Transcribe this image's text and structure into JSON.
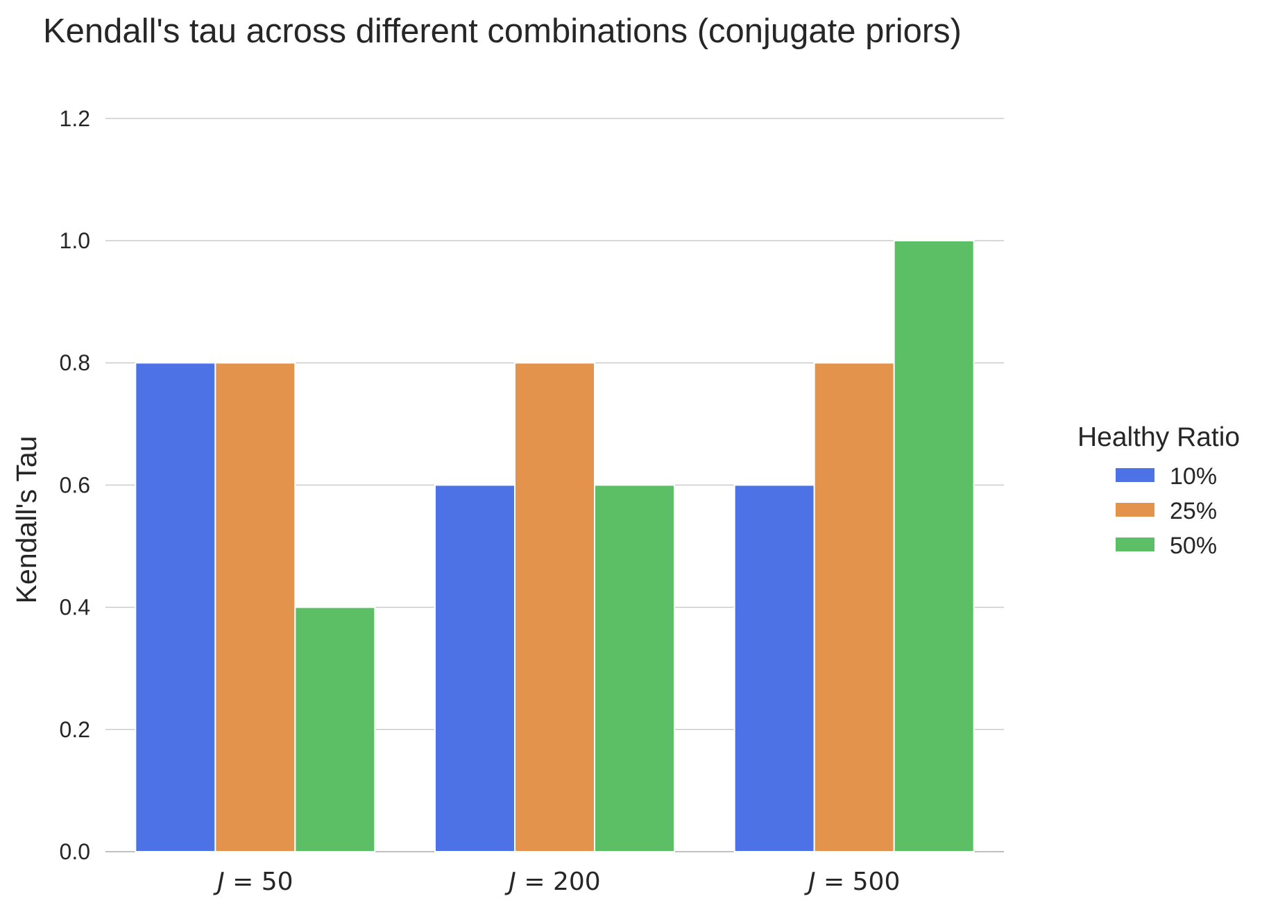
{
  "chart_data": {
    "type": "bar",
    "title": "Kendall's tau across different combinations (conjugate priors)",
    "xlabel": "",
    "ylabel": "Kendall's Tau",
    "categories": [
      "J = 50",
      "J = 200",
      "J = 500"
    ],
    "category_prefix": "J",
    "category_numbers": [
      "50",
      "200",
      "500"
    ],
    "ylim": [
      0,
      1.25
    ],
    "yticks": [
      0.0,
      0.2,
      0.4,
      0.6,
      0.8,
      1.0,
      1.2
    ],
    "grid": true,
    "legend": {
      "title": "Healthy Ratio",
      "placement": "right"
    },
    "series": [
      {
        "name": "10%",
        "color": "#4c72e6",
        "values": [
          0.8,
          0.6,
          0.6
        ]
      },
      {
        "name": "25%",
        "color": "#e4934c",
        "values": [
          0.8,
          0.8,
          0.8
        ]
      },
      {
        "name": "50%",
        "color": "#5cbf66",
        "values": [
          0.4,
          0.6,
          1.0
        ]
      }
    ]
  }
}
